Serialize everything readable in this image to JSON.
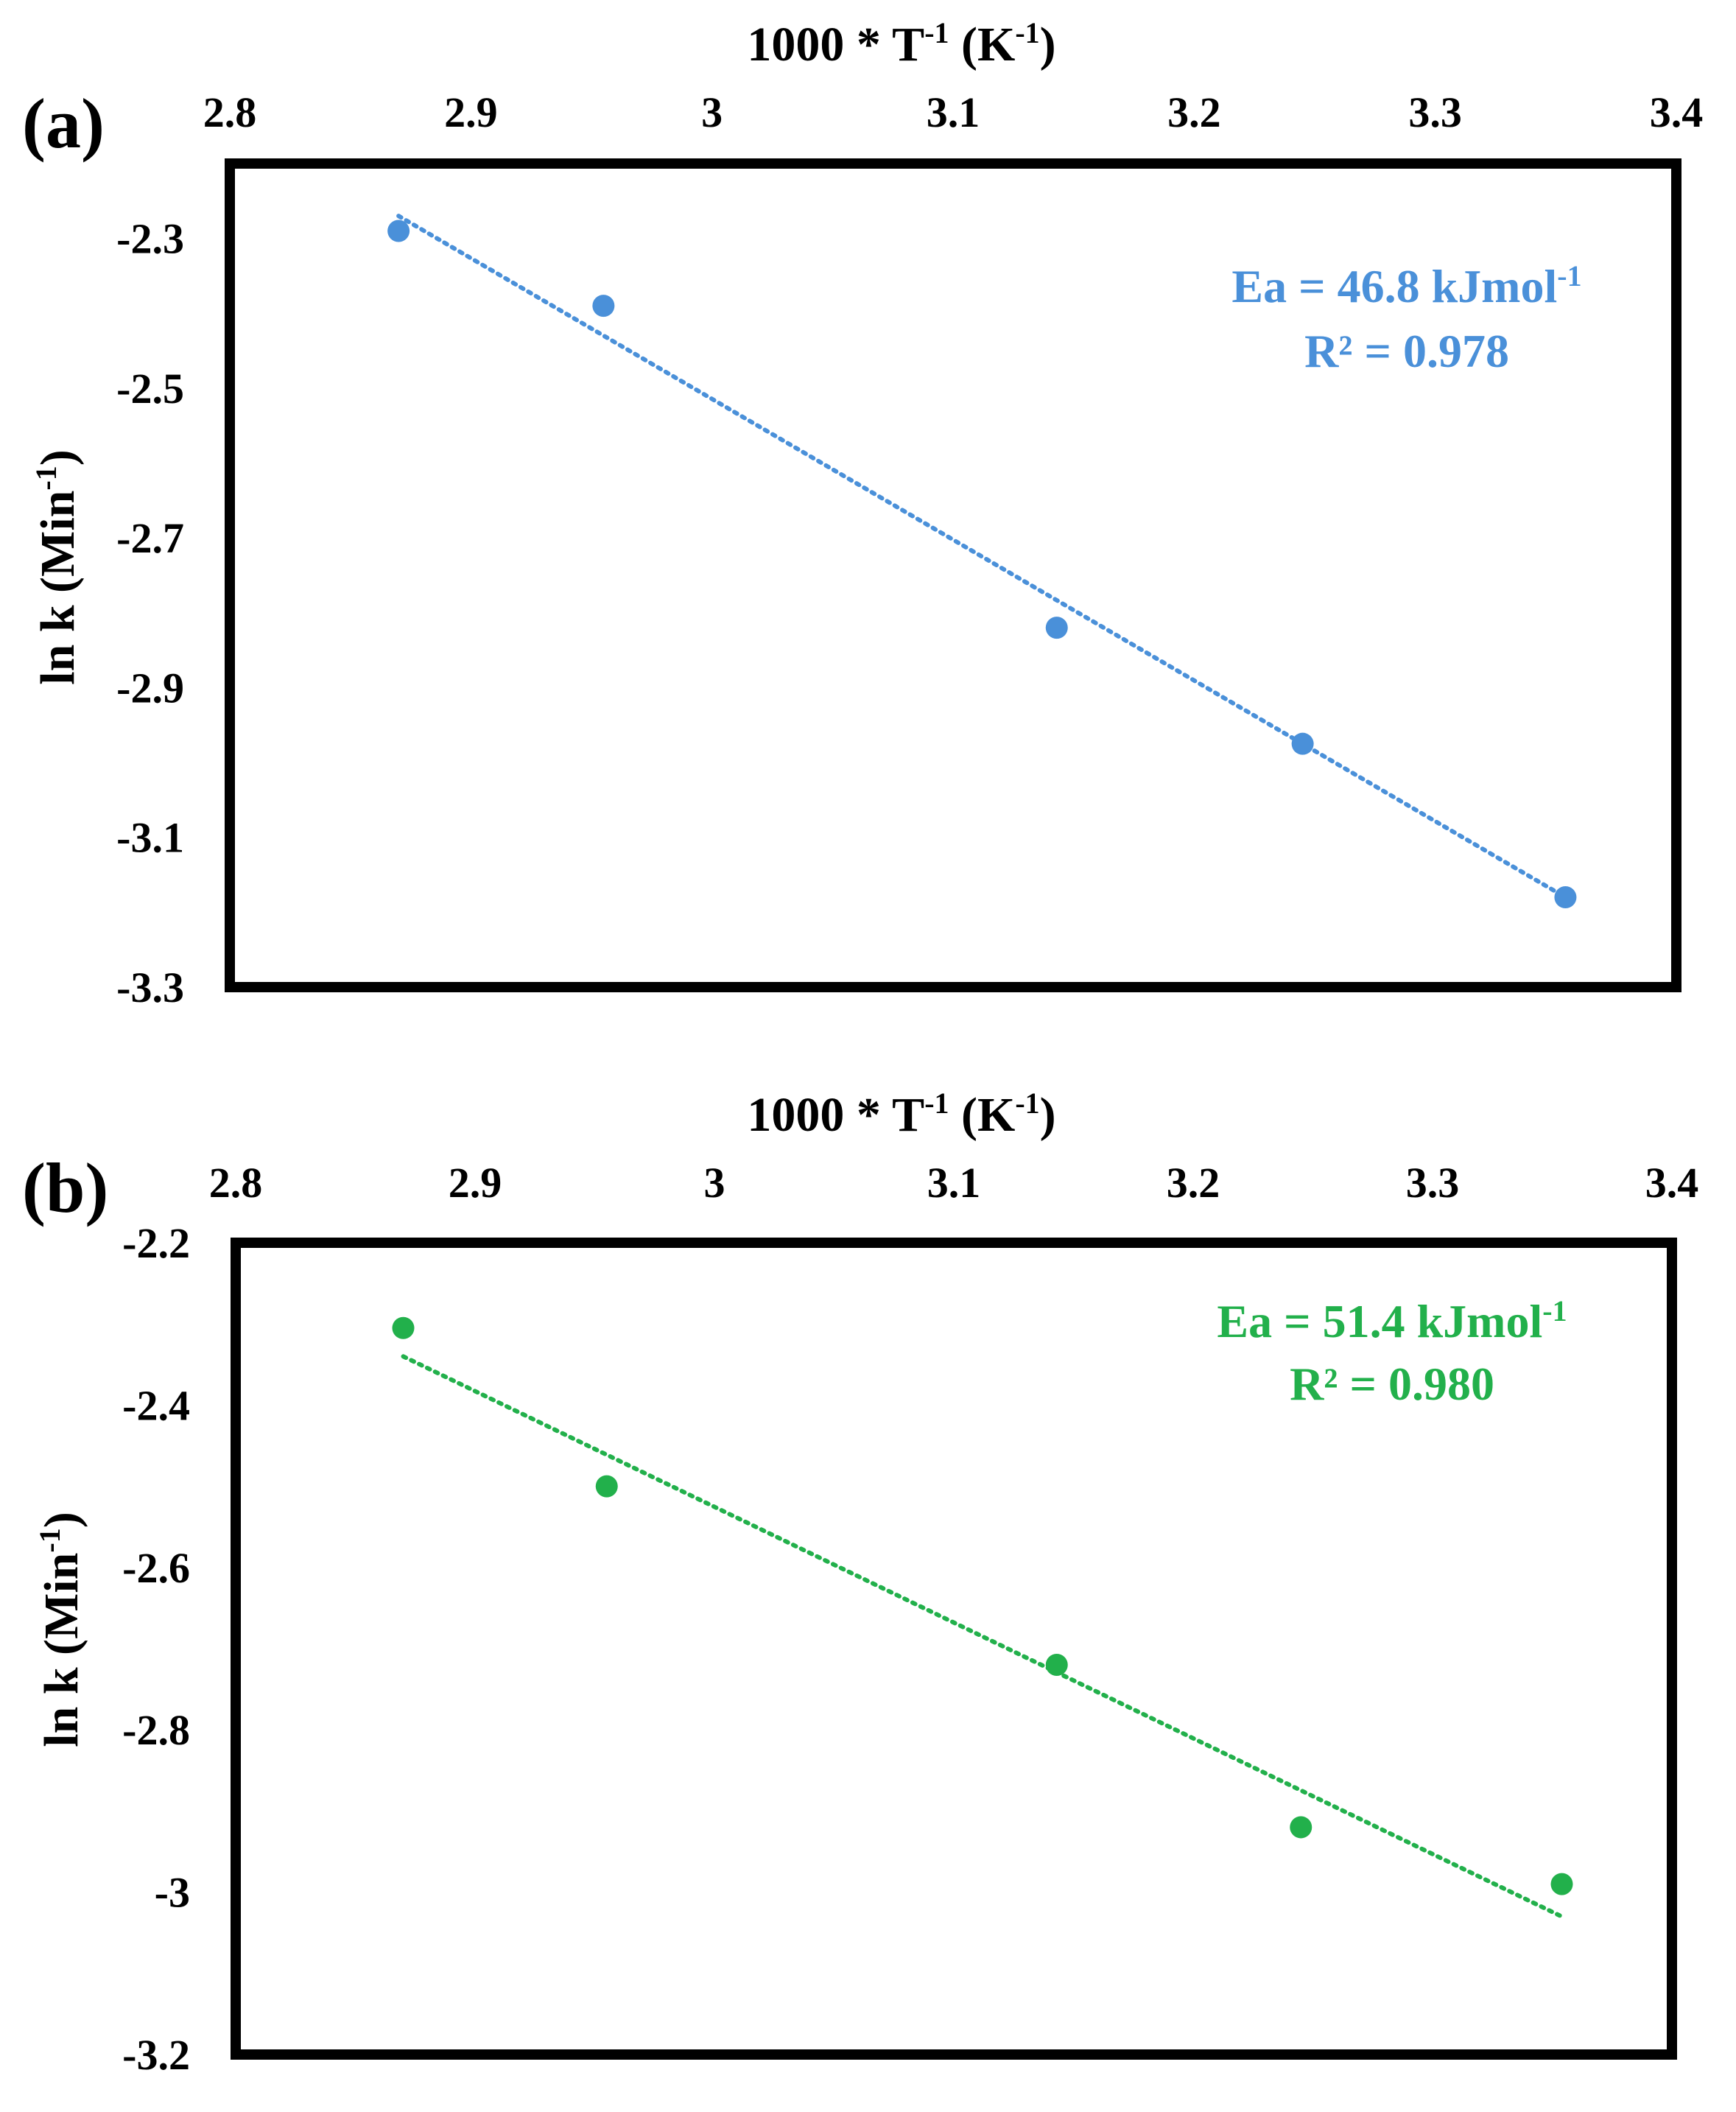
{
  "chart_data": [
    {
      "type": "scatter",
      "panel_label": "(a)",
      "title": "",
      "xlabel": {
        "main": "1000 * T",
        "sup1": "-1",
        "mid": " (K",
        "sup2": "-1",
        "end": ")"
      },
      "ylabel": {
        "main": "ln k (Min",
        "sup": "-1",
        "end": ")"
      },
      "xlim": [
        2.8,
        3.4
      ],
      "ylim": [
        -3.3,
        -2.2
      ],
      "xticks": [
        "2.8",
        "2.9",
        "3",
        "3.1",
        "3.2",
        "3.3",
        "3.4"
      ],
      "yticks": [
        "-2.3",
        "-2.5",
        "-2.7",
        "-2.9",
        "-3.1",
        "-3.3"
      ],
      "ytick_values": [
        -2.3,
        -2.5,
        -2.7,
        -2.9,
        -3.1,
        -3.3
      ],
      "x_axis_position": "top",
      "color": "#4a90d9",
      "series": [
        {
          "name": "data",
          "x": [
            2.87,
            2.955,
            3.143,
            3.245,
            3.354
          ],
          "y": [
            -2.29,
            -2.39,
            -2.82,
            -2.975,
            -3.18
          ]
        }
      ],
      "trendline": {
        "style": "dotted",
        "x": [
          2.87,
          3.354
        ],
        "y": [
          -2.27,
          -3.18
        ]
      },
      "annotation": {
        "line1_main": "Ea = 46.8 kJmol",
        "line1_sup": "-1",
        "line2": "R² = 0.978"
      }
    },
    {
      "type": "scatter",
      "panel_label": "(b)",
      "title": "",
      "xlabel": {
        "main": "1000 * T",
        "sup1": "-1",
        "mid": " (K",
        "sup2": "-1",
        "end": ")"
      },
      "ylabel": {
        "main": "ln k (Min",
        "sup": "-1",
        "end": ")"
      },
      "xlim": [
        2.8,
        3.4
      ],
      "ylim": [
        -3.2,
        -2.2
      ],
      "xticks": [
        "2.8",
        "2.9",
        "3",
        "3.1",
        "3.2",
        "3.3",
        "3.4"
      ],
      "yticks": [
        "-2.2",
        "-2.4",
        "-2.6",
        "-2.8",
        "-3",
        "-3.2"
      ],
      "ytick_values": [
        -2.2,
        -2.4,
        -2.6,
        -2.8,
        -3.0,
        -3.2
      ],
      "x_axis_position": "top",
      "color": "#22b04b",
      "series": [
        {
          "name": "data",
          "x": [
            2.87,
            2.955,
            3.143,
            3.245,
            3.354
          ],
          "y": [
            -2.305,
            -2.5,
            -2.72,
            -2.92,
            -2.99
          ]
        }
      ],
      "trendline": {
        "style": "dotted",
        "x": [
          2.87,
          3.354
        ],
        "y": [
          -2.34,
          -3.03
        ]
      },
      "annotation": {
        "line1_main": "Ea = 51.4 kJmol",
        "line1_sup": "-1",
        "line2": "R² = 0.980"
      }
    }
  ]
}
